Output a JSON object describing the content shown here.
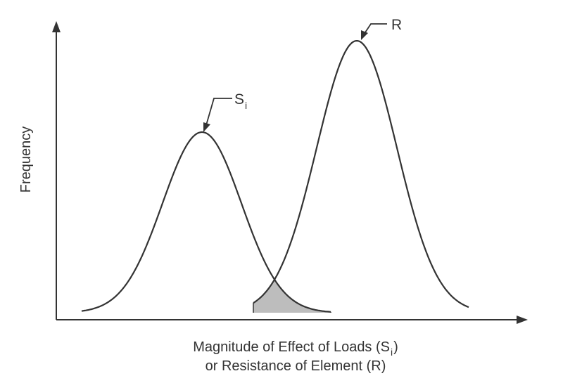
{
  "diagram": {
    "y_axis_label": "Frequency",
    "x_axis_label": {
      "line1_main": "Magnitude of Effect of Loads (S",
      "line1_sub": "i",
      "line1_end": ")",
      "line2": "or Resistance of Element (R)"
    },
    "curves": {
      "load": {
        "label_main": "S",
        "label_sub": "i"
      },
      "resistance": {
        "label": "R"
      }
    },
    "colors": {
      "line": "#333333",
      "overlap_fill": "#bdbdbd"
    }
  }
}
